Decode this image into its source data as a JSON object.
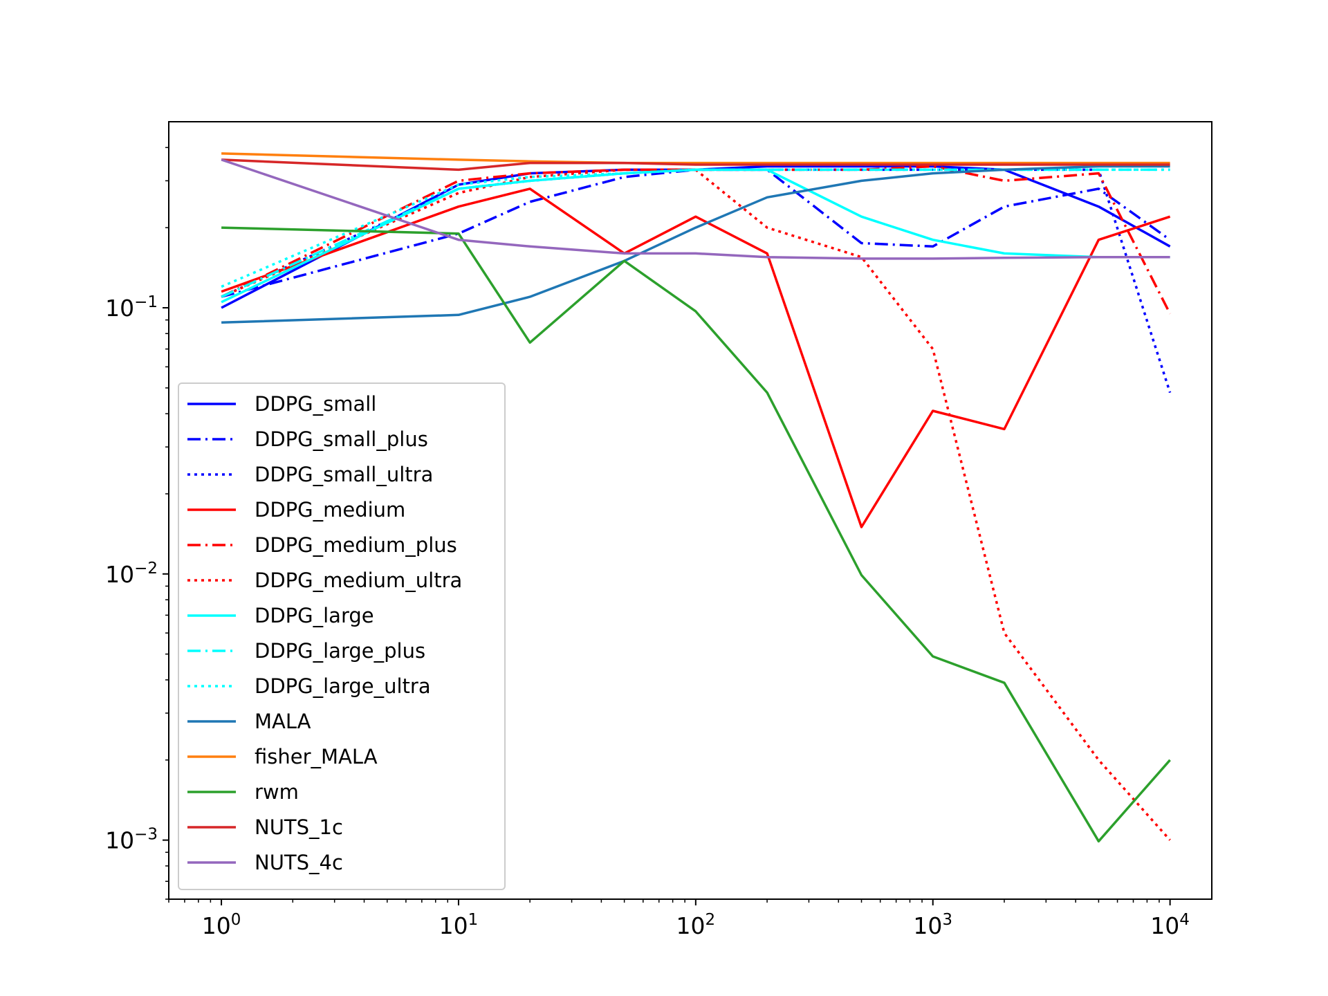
{
  "chart_data": {
    "type": "line",
    "title": "",
    "xlabel": "",
    "ylabel": "",
    "xscale": "log",
    "yscale": "log",
    "xlim": [
      0.6,
      15000
    ],
    "ylim": [
      0.0006,
      0.5
    ],
    "grid": false,
    "legend_position": "lower-left",
    "x_ticks": [
      {
        "base": "10",
        "exp": "0",
        "value": 1
      },
      {
        "base": "10",
        "exp": "1",
        "value": 10
      },
      {
        "base": "10",
        "exp": "2",
        "value": 100
      },
      {
        "base": "10",
        "exp": "3",
        "value": 1000
      },
      {
        "base": "10",
        "exp": "4",
        "value": 10000
      }
    ],
    "y_ticks": [
      {
        "base": "10",
        "exp": "−3",
        "value": 0.001
      },
      {
        "base": "10",
        "exp": "−2",
        "value": 0.01
      },
      {
        "base": "10",
        "exp": "−1",
        "value": 0.1
      }
    ],
    "x": [
      1,
      10,
      20,
      50,
      100,
      200,
      500,
      1000,
      2000,
      5000,
      10000
    ],
    "series": [
      {
        "name": "DDPG_small",
        "color": "#0000ff",
        "style": "solid",
        "values": [
          0.1,
          0.29,
          0.32,
          0.33,
          0.33,
          0.34,
          0.34,
          0.34,
          0.33,
          0.24,
          0.17
        ]
      },
      {
        "name": "DDPG_small_plus",
        "color": "#0000ff",
        "style": "dashdot",
        "values": [
          0.11,
          0.19,
          0.25,
          0.31,
          0.33,
          0.33,
          0.175,
          0.17,
          0.24,
          0.28,
          0.18
        ]
      },
      {
        "name": "DDPG_small_ultra",
        "color": "#0000ff",
        "style": "dotted",
        "values": [
          0.11,
          0.28,
          0.3,
          0.32,
          0.33,
          0.33,
          0.33,
          0.33,
          0.33,
          0.33,
          0.048
        ]
      },
      {
        "name": "DDPG_medium",
        "color": "#ff0000",
        "style": "solid",
        "values": [
          0.115,
          0.24,
          0.28,
          0.16,
          0.22,
          0.16,
          0.015,
          0.041,
          0.035,
          0.18,
          0.22
        ]
      },
      {
        "name": "DDPG_medium_plus",
        "color": "#ff0000",
        "style": "dashdot",
        "values": [
          0.11,
          0.3,
          0.32,
          0.33,
          0.33,
          0.33,
          0.33,
          0.34,
          0.3,
          0.32,
          0.095
        ]
      },
      {
        "name": "DDPG_medium_ultra",
        "color": "#ff0000",
        "style": "dotted",
        "values": [
          0.11,
          0.27,
          0.31,
          0.33,
          0.33,
          0.2,
          0.155,
          0.07,
          0.006,
          0.002,
          0.001
        ]
      },
      {
        "name": "DDPG_large",
        "color": "#00ffff",
        "style": "solid",
        "values": [
          0.105,
          0.28,
          0.3,
          0.32,
          0.33,
          0.33,
          0.22,
          0.18,
          0.16,
          0.155,
          0.155
        ]
      },
      {
        "name": "DDPG_large_plus",
        "color": "#00ffff",
        "style": "dashdot",
        "values": [
          0.11,
          0.28,
          0.3,
          0.32,
          0.33,
          0.33,
          0.33,
          0.33,
          0.33,
          0.33,
          0.33
        ]
      },
      {
        "name": "DDPG_large_ultra",
        "color": "#00ffff",
        "style": "dotted",
        "values": [
          0.12,
          0.29,
          0.31,
          0.32,
          0.33,
          0.33,
          0.33,
          0.33,
          0.33,
          0.33,
          0.33
        ]
      },
      {
        "name": "MALA",
        "color": "#1f77b4",
        "style": "solid",
        "values": [
          0.088,
          0.094,
          0.11,
          0.15,
          0.2,
          0.26,
          0.3,
          0.32,
          0.33,
          0.34,
          0.34
        ]
      },
      {
        "name": "fisher_MALA",
        "color": "#ff7f0e",
        "style": "solid",
        "values": [
          0.38,
          0.36,
          0.355,
          0.35,
          0.35,
          0.35,
          0.35,
          0.35,
          0.35,
          0.35,
          0.35
        ]
      },
      {
        "name": "rwm",
        "color": "#2ca02c",
        "style": "solid",
        "values": [
          0.2,
          0.19,
          0.074,
          0.15,
          0.097,
          0.048,
          0.0099,
          0.0049,
          0.0039,
          0.00099,
          0.002
        ]
      },
      {
        "name": "NUTS_1c",
        "color": "#d62728",
        "style": "solid",
        "values": [
          0.36,
          0.33,
          0.35,
          0.35,
          0.345,
          0.345,
          0.345,
          0.345,
          0.345,
          0.345,
          0.345
        ]
      },
      {
        "name": "NUTS_4c",
        "color": "#9467bd",
        "style": "solid",
        "values": [
          0.36,
          0.18,
          0.17,
          0.16,
          0.16,
          0.155,
          0.153,
          0.153,
          0.154,
          0.155,
          0.155
        ]
      }
    ]
  }
}
